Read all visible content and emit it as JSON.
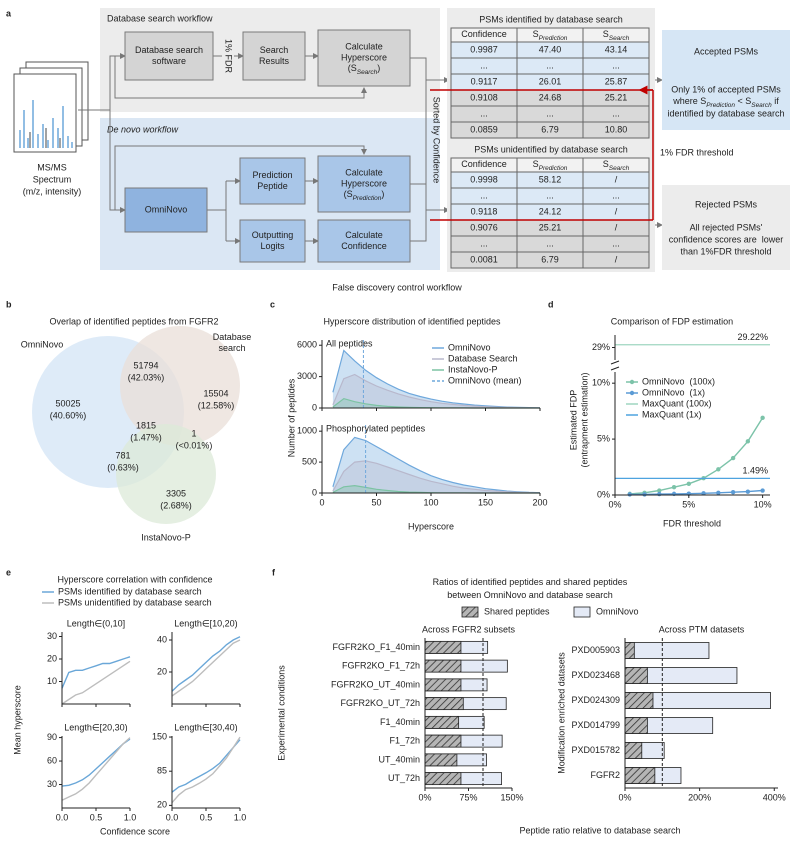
{
  "panel_labels": [
    "a",
    "b",
    "c",
    "d",
    "e",
    "f"
  ],
  "workflow": {
    "title_db": "Database search workflow",
    "title_denovo": "De novo workflow",
    "spectrum": [
      "MS/MS",
      "Spectrum",
      "(m/z, intensity)"
    ],
    "db_software": [
      "Database search",
      "software"
    ],
    "fdr": "1% FDR",
    "search_results": [
      "Search",
      "Results"
    ],
    "hyper_search": [
      "Calculate",
      "Hyperscore",
      [
        {
          "t": "(S"
        },
        {
          "sub": "Search"
        },
        {
          "t": ")"
        }
      ]
    ],
    "omninovo": [
      "OmniNovo"
    ],
    "pred_peptide": [
      "Prediction",
      "Peptide"
    ],
    "logits": [
      "Outputting",
      "Logits"
    ],
    "hyper_pred": [
      "Calculate",
      "Hyperscore",
      [
        {
          "t": "(S"
        },
        {
          "sub": "Prediction"
        },
        {
          "t": ")"
        }
      ]
    ],
    "confidence": [
      "Calculate",
      "Confidence"
    ],
    "sorted": "Sorted by Confidence",
    "table_identified": {
      "title": "PSMs identified by database search",
      "header": [
        [
          {
            "t": "Confidence"
          }
        ],
        [
          {
            "t": "S"
          },
          {
            "sub": "Prediction"
          }
        ],
        [
          {
            "t": "S"
          },
          {
            "sub": "Search"
          }
        ]
      ],
      "rows": [
        [
          "0.9987",
          "47.40",
          "43.14"
        ],
        [
          "...",
          "...",
          "..."
        ],
        [
          "0.9117",
          "26.01",
          "25.87"
        ],
        [
          "0.9108",
          "24.68",
          "25.21"
        ],
        [
          "...",
          "...",
          "..."
        ],
        [
          "0.0859",
          "6.79",
          "10.80"
        ]
      ]
    },
    "table_unidentified": {
      "title": "PSMs unidentified by database search",
      "header": [
        [
          {
            "t": "Confidence"
          }
        ],
        [
          {
            "t": "S"
          },
          {
            "sub": "Prediction"
          }
        ],
        [
          {
            "t": "S"
          },
          {
            "sub": "Search"
          }
        ]
      ],
      "rows": [
        [
          "0.9998",
          "58.12",
          "/"
        ],
        [
          "...",
          "...",
          "..."
        ],
        [
          "0.9118",
          "24.12",
          "/"
        ],
        [
          "0.9076",
          "25.21",
          "/"
        ],
        [
          "...",
          "...",
          "..."
        ],
        [
          "0.0081",
          "6.79",
          "/"
        ]
      ]
    },
    "threshold": "1% FDR threshold",
    "accepted": {
      "title": "Accepted PSMs",
      "lines": [
        "Only 1% of accepted PSMs",
        [
          {
            "t": "where S"
          },
          {
            "sub": "Prediction"
          },
          {
            "t": " < S"
          },
          {
            "sub": "Search"
          },
          {
            "t": " if"
          }
        ],
        "identified by database search"
      ]
    },
    "rejected": {
      "title": "Rejected PSMs",
      "lines": [
        "All rejected PSMs'",
        "confidence scores are  lower",
        "than 1%FDR threshold"
      ]
    },
    "caption": "False discovery control workflow"
  },
  "venn": {
    "title": "Overlap of identified peptides from FGFR2",
    "sets": [
      {
        "label": [
          "OmniNovo"
        ],
        "color": "#d3e4f5"
      },
      {
        "label": [
          "Database",
          "search"
        ],
        "color": "#e9dfd8"
      },
      {
        "label": [
          "InstaNovo-P"
        ],
        "color": "#dcead8"
      }
    ],
    "regions": [
      {
        "count": 50025,
        "label": "(40.60%)"
      },
      {
        "count": 51794,
        "label": "(42.03%)"
      },
      {
        "count": 15504,
        "label": "(12.58%)"
      },
      {
        "count": 1815,
        "label": "(1.47%)"
      },
      {
        "count": 1,
        "label": "(<0.01%)"
      },
      {
        "count": 781,
        "label": "(0.63%)"
      },
      {
        "count": 3305,
        "label": "(2.68%)"
      }
    ]
  },
  "panels": {
    "c": {
      "title": "Hyperscore distribution of identified peptides",
      "xlabel": "Hyperscore",
      "ylabel": "Number of peptides"
    },
    "d": {
      "title": "Comparison of FDP estimation",
      "xlabel": "FDR threshold",
      "ylabel": [
        "Estimated FDP",
        "(entrapment estimation)"
      ]
    },
    "e": {
      "title": "Hyperscore correlation with confidence",
      "xlabel": "Confidence score",
      "ylabel": "Mean hyperscore"
    },
    "f": {
      "title": [
        "Ratios of identified peptides and shared peptides",
        "between OmniNovo and database search"
      ],
      "xlabel": "Peptide ratio relative to database search"
    }
  },
  "chart_data": [
    {
      "type": "area",
      "subtitle": "All peptides",
      "x": [
        10,
        20,
        30,
        40,
        50,
        60,
        70,
        80,
        90,
        100,
        110,
        120,
        130,
        140,
        150,
        160,
        170,
        180,
        190,
        200
      ],
      "series": [
        {
          "name": "OmniNovo",
          "color": "#6fa8dc",
          "values": [
            1500,
            5500,
            4500,
            3600,
            2900,
            2300,
            1800,
            1400,
            1100,
            850,
            650,
            500,
            380,
            280,
            200,
            140,
            90,
            60,
            40,
            20
          ]
        },
        {
          "name": "Database Search",
          "color": "#b8b8cc",
          "values": [
            300,
            2800,
            3200,
            2600,
            2100,
            1700,
            1350,
            1050,
            800,
            600,
            450,
            340,
            250,
            180,
            120,
            80,
            50,
            30,
            20,
            10
          ]
        },
        {
          "name": "InstaNovo-P",
          "color": "#7cc3a3",
          "values": [
            100,
            900,
            600,
            400,
            250,
            150,
            100,
            60,
            40,
            25,
            15,
            10,
            5,
            3,
            2,
            1,
            0,
            0,
            0,
            0
          ]
        }
      ],
      "mean": {
        "name": "OmniNovo (mean)",
        "value": 38
      },
      "xlim": [
        0,
        200
      ],
      "xticks": [
        0,
        50,
        100,
        150,
        200
      ],
      "ylim": [
        0,
        6500
      ],
      "yticks": [
        0,
        3000,
        6000
      ]
    },
    {
      "type": "area",
      "subtitle": "Phosphorylated peptides",
      "x": [
        10,
        20,
        30,
        40,
        50,
        60,
        70,
        80,
        90,
        100,
        110,
        120,
        130,
        140,
        150,
        160,
        170,
        180,
        190,
        200
      ],
      "series": [
        {
          "color": "#6fa8dc",
          "values": [
            100,
            700,
            900,
            850,
            750,
            650,
            550,
            450,
            360,
            280,
            220,
            170,
            130,
            100,
            70,
            50,
            30,
            20,
            10,
            5
          ]
        },
        {
          "color": "#b8b8cc",
          "values": [
            30,
            350,
            500,
            520,
            480,
            420,
            360,
            300,
            240,
            190,
            150,
            110,
            80,
            60,
            40,
            30,
            20,
            10,
            5,
            2
          ]
        },
        {
          "color": "#7cc3a3",
          "values": [
            10,
            100,
            120,
            90,
            60,
            40,
            25,
            15,
            10,
            5,
            3,
            2,
            1,
            0,
            0,
            0,
            0,
            0,
            0,
            0
          ]
        }
      ],
      "mean": {
        "value": 40
      },
      "xlim": [
        0,
        200
      ],
      "xticks": [
        0,
        50,
        100,
        150,
        200
      ],
      "ylim": [
        0,
        1100
      ],
      "yticks": [
        0,
        500,
        1000
      ]
    },
    {
      "type": "line",
      "x": [
        1,
        2,
        3,
        4,
        5,
        6,
        7,
        8,
        9,
        10
      ],
      "series": [
        {
          "name": "OmniNovo  (100x)",
          "color": "#7cc3a9",
          "marker": true,
          "values": [
            0.1,
            0.2,
            0.4,
            0.7,
            1.0,
            1.5,
            2.3,
            3.3,
            4.8,
            6.9
          ]
        },
        {
          "name": "OmniNovo  (1x)",
          "color": "#5b9bd5",
          "marker": true,
          "values": [
            0.05,
            0.05,
            0.08,
            0.1,
            0.12,
            0.15,
            0.2,
            0.25,
            0.3,
            0.4
          ]
        },
        {
          "name": "MaxQuant (100x)",
          "color": "#9fd6c0",
          "value": 29.22,
          "value_label": "29.22%"
        },
        {
          "name": "MaxQuant (1x)",
          "color": "#4ea3df",
          "value": 1.49,
          "value_label": "1.49%"
        }
      ],
      "xlim": [
        0,
        10.5
      ],
      "xticks": [
        {
          "value": 0,
          "label": "0%"
        },
        {
          "value": 5,
          "label": "5%"
        },
        {
          "value": 10,
          "label": "10%"
        }
      ],
      "ylim": [
        0,
        30
      ],
      "y_break": [
        11,
        28
      ],
      "yticks": [
        {
          "value": 0,
          "label": "0%"
        },
        {
          "value": 5,
          "label": "5%"
        },
        {
          "value": 10,
          "label": "10%"
        },
        {
          "value": 29,
          "label": "29%"
        }
      ]
    },
    {
      "type": "line",
      "subtitle": "Length∈(0,10]",
      "x": [
        0,
        0.1,
        0.2,
        0.3,
        0.4,
        0.5,
        0.6,
        0.7,
        0.8,
        0.9,
        1
      ],
      "series": [
        {
          "name": "PSMs identified by database search",
          "color": "#6aa7d8",
          "values": [
            7,
            14,
            15,
            15,
            16,
            17,
            18,
            18,
            19,
            20,
            21
          ]
        },
        {
          "name": "PSMs unidentified by database search",
          "color": "#bdbdbd",
          "values": [
            0,
            2,
            4,
            5,
            7,
            9,
            11,
            13,
            15,
            17,
            19
          ]
        }
      ],
      "xlim": [
        0,
        1
      ],
      "xticks": [
        0,
        0.5,
        1
      ],
      "ylim": [
        0,
        32
      ],
      "yticks": [
        10,
        20,
        30
      ]
    },
    {
      "type": "line",
      "subtitle": "Length∈[10,20)",
      "x": [
        0,
        0.1,
        0.2,
        0.3,
        0.4,
        0.5,
        0.6,
        0.7,
        0.8,
        0.9,
        1
      ],
      "series": [
        {
          "color": "#6aa7d8",
          "values": [
            8,
            12,
            15,
            18,
            22,
            26,
            30,
            33,
            37,
            40,
            42
          ]
        },
        {
          "color": "#bdbdbd",
          "values": [
            5,
            8,
            11,
            14,
            18,
            22,
            26,
            30,
            34,
            38,
            40
          ]
        }
      ],
      "xlim": [
        0,
        1
      ],
      "xticks": [
        0,
        0.5,
        1
      ],
      "ylim": [
        0,
        45
      ],
      "yticks": [
        20,
        40
      ]
    },
    {
      "type": "line",
      "subtitle": "Length∈[20,30)",
      "x": [
        0,
        0.1,
        0.2,
        0.3,
        0.4,
        0.5,
        0.6,
        0.7,
        0.8,
        0.9,
        1
      ],
      "series": [
        {
          "color": "#6aa7d8",
          "values": [
            28,
            29,
            32,
            36,
            42,
            50,
            58,
            66,
            74,
            82,
            88
          ]
        },
        {
          "color": "#bdbdbd",
          "values": [
            10,
            14,
            18,
            24,
            32,
            42,
            52,
            62,
            72,
            82,
            90
          ]
        }
      ],
      "xlim": [
        0,
        1
      ],
      "xticks": [
        {
          "value": 0,
          "label": "0.0"
        },
        0.5,
        {
          "value": 1,
          "label": "1.0"
        }
      ],
      "ylim": [
        0,
        92
      ],
      "yticks": [
        30,
        60,
        90
      ]
    },
    {
      "type": "line",
      "subtitle": "Length∈[30,40)",
      "x": [
        0,
        0.1,
        0.2,
        0.3,
        0.4,
        0.5,
        0.6,
        0.7,
        0.8,
        0.9,
        1
      ],
      "series": [
        {
          "color": "#6aa7d8",
          "values": [
            45,
            55,
            60,
            68,
            75,
            82,
            90,
            100,
            115,
            130,
            145
          ]
        },
        {
          "color": "#bdbdbd",
          "values": [
            25,
            40,
            50,
            55,
            62,
            70,
            80,
            95,
            110,
            130,
            150
          ]
        }
      ],
      "xlim": [
        0,
        1
      ],
      "xticks": [
        {
          "value": 0,
          "label": "0.0"
        },
        0.5,
        {
          "value": 1,
          "label": "1.0"
        }
      ],
      "ylim": [
        15,
        152
      ],
      "yticks": [
        20,
        85,
        150
      ]
    },
    {
      "type": "barh",
      "subtitle": "Across FGFR2 subsets",
      "ylabel": "Experimental conditions",
      "categories": [
        "FGFR2KO_F1_40min",
        "FGFR2KO_F1_72h",
        "FGFR2KO_UT_40min",
        "FGFR2KO_UT_72h",
        "F1_40min",
        "F1_72h",
        "UT_40min",
        "UT_72h"
      ],
      "series": [
        {
          "name": "Shared peptides",
          "color": "#b5b5b5",
          "pattern": "hatch",
          "values": [
            62,
            62,
            62,
            66,
            58,
            62,
            55,
            62
          ]
        },
        {
          "name": "OmniNovo",
          "color": "#e4eaf6",
          "values": [
            108,
            142,
            107,
            140,
            102,
            133,
            106,
            132
          ]
        }
      ],
      "reference_line": 100,
      "xlim": [
        0,
        150
      ],
      "xticks": [
        {
          "value": 0,
          "label": "0%"
        },
        {
          "value": 75,
          "label": "75%"
        },
        {
          "value": 150,
          "label": "150%"
        }
      ]
    },
    {
      "type": "barh",
      "subtitle": "Across PTM datasets",
      "ylabel": "Modification enriched datasets",
      "categories": [
        "PXD005903",
        "PXD023468",
        "PXD024309",
        "PXD014799",
        "PXD015782",
        "FGFR2"
      ],
      "series": [
        {
          "color": "#b5b5b5",
          "pattern": "hatch",
          "values": [
            25,
            60,
            75,
            60,
            45,
            80
          ]
        },
        {
          "color": "#e4eaf6",
          "values": [
            225,
            300,
            390,
            235,
            105,
            150
          ]
        }
      ],
      "reference_line": 100,
      "xlim": [
        0,
        410
      ],
      "xticks": [
        {
          "value": 0,
          "label": "0%"
        },
        {
          "value": 200,
          "label": "200%"
        },
        {
          "value": 400,
          "label": "400%"
        }
      ]
    }
  ]
}
